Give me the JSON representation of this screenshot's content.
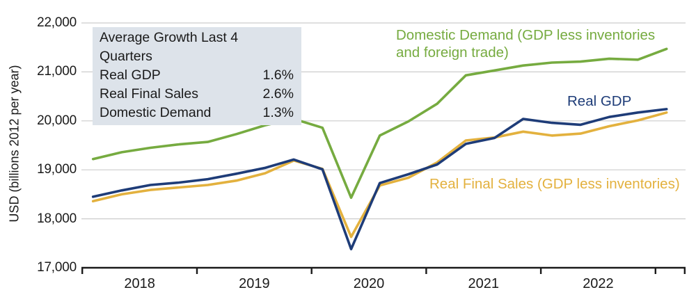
{
  "chart_data": {
    "type": "line",
    "title": "",
    "ylabel": "USD (billions 2012 per year)",
    "ylim": [
      17000,
      22000
    ],
    "yticks": [
      17000,
      18000,
      19000,
      20000,
      21000,
      22000
    ],
    "ytick_labels": [
      "17,000",
      "18,000",
      "19,000",
      "20,000",
      "21,000",
      "22,000"
    ],
    "x_year_labels": [
      "2018",
      "2019",
      "2020",
      "2021",
      "2022"
    ],
    "x_quarters": [
      "2018 Q1",
      "2018 Q2",
      "2018 Q3",
      "2018 Q4",
      "2019 Q1",
      "2019 Q2",
      "2019 Q3",
      "2019 Q4",
      "2020 Q1",
      "2020 Q2",
      "2020 Q3",
      "2020 Q4",
      "2021 Q1",
      "2021 Q2",
      "2021 Q3",
      "2021 Q4",
      "2022 Q1",
      "2022 Q2",
      "2022 Q3",
      "2022 Q4",
      "2023 Q1"
    ],
    "grid": "horizontal-only",
    "legend_position": "inline-labels",
    "series": [
      {
        "name": "Domestic Demand",
        "label": "Domestic Demand (GDP less inventories and foreign trade)",
        "color": "#76ab40",
        "values": [
          19220,
          19360,
          19450,
          19520,
          19570,
          19730,
          19910,
          20040,
          19860,
          18430,
          19700,
          19990,
          20350,
          20930,
          21030,
          21130,
          21190,
          21210,
          21270,
          21250,
          21470
        ]
      },
      {
        "name": "Real Final Sales",
        "label": "Real Final Sales (GDP less inventories)",
        "color": "#e3b13e",
        "values": [
          18360,
          18500,
          18590,
          18640,
          18690,
          18780,
          18930,
          19190,
          19020,
          17630,
          18680,
          18840,
          19150,
          19600,
          19660,
          19780,
          19700,
          19740,
          19890,
          20010,
          20170
        ]
      },
      {
        "name": "Real GDP",
        "label": "Real GDP",
        "color": "#1e3c78",
        "values": [
          18450,
          18580,
          18690,
          18740,
          18810,
          18920,
          19040,
          19210,
          19010,
          17380,
          18730,
          18910,
          19110,
          19530,
          19650,
          20040,
          19960,
          19920,
          20080,
          20170,
          20240
        ]
      }
    ]
  },
  "info_box": {
    "title": "Average Growth Last 4 Quarters",
    "rows": [
      {
        "label": "Real GDP",
        "value": "1.6%"
      },
      {
        "label": "Real Final Sales",
        "value": "2.6%"
      },
      {
        "label": "Domestic Demand",
        "value": "1.3%"
      }
    ],
    "background": "#dde3ea"
  },
  "colors": {
    "gridline": "#cccccc",
    "axis": "#1a1a1a",
    "text": "#1a1a1a"
  }
}
